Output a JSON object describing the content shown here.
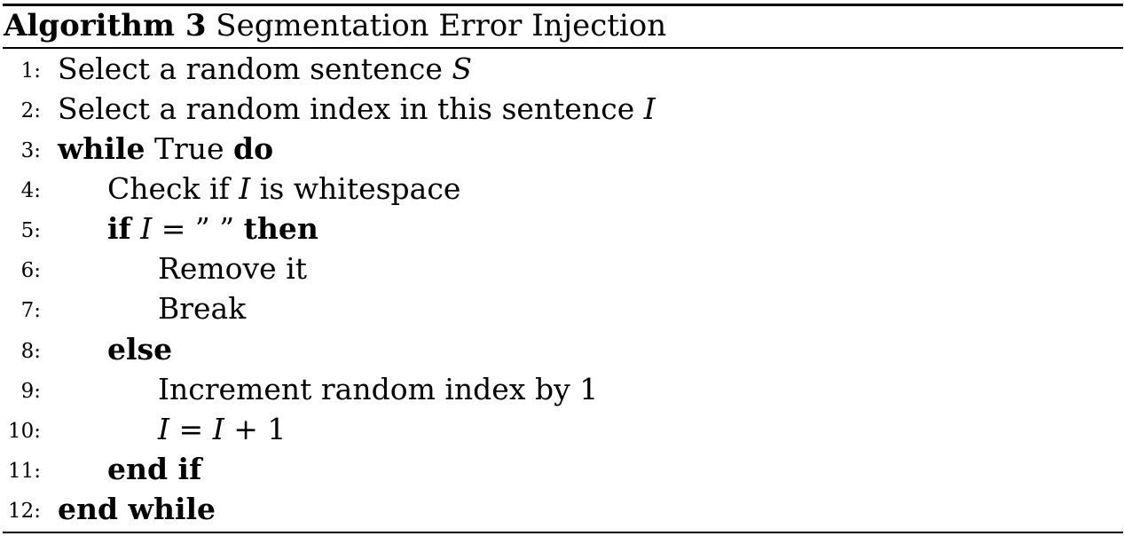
{
  "algorithm": {
    "label": "Algorithm 3",
    "title": "Segmentation Error Injection"
  },
  "lines": [
    {
      "no": "1:",
      "text": "Select a random sentence ",
      "var": "S"
    },
    {
      "no": "2:",
      "text": "Select a random index in this sentence ",
      "var": "I"
    },
    {
      "no": "3:",
      "kw1": "while",
      "cond": " True ",
      "kw2": "do"
    },
    {
      "no": "4:",
      "pre": "Check if ",
      "var": "I",
      "post": " is whitespace"
    },
    {
      "no": "5:",
      "kw1": "if",
      "var": "I",
      "expr": " = ” ” ",
      "kw2": "then"
    },
    {
      "no": "6:",
      "text": "Remove it"
    },
    {
      "no": "7:",
      "text": "Break"
    },
    {
      "no": "8:",
      "kw1": "else"
    },
    {
      "no": "9:",
      "text": "Increment random index by 1"
    },
    {
      "no": "10:",
      "var": "I",
      "eq": " = ",
      "var2": "I",
      "rest": " + 1"
    },
    {
      "no": "11:",
      "kw1": "end if"
    },
    {
      "no": "12:",
      "kw1": "end while"
    }
  ]
}
